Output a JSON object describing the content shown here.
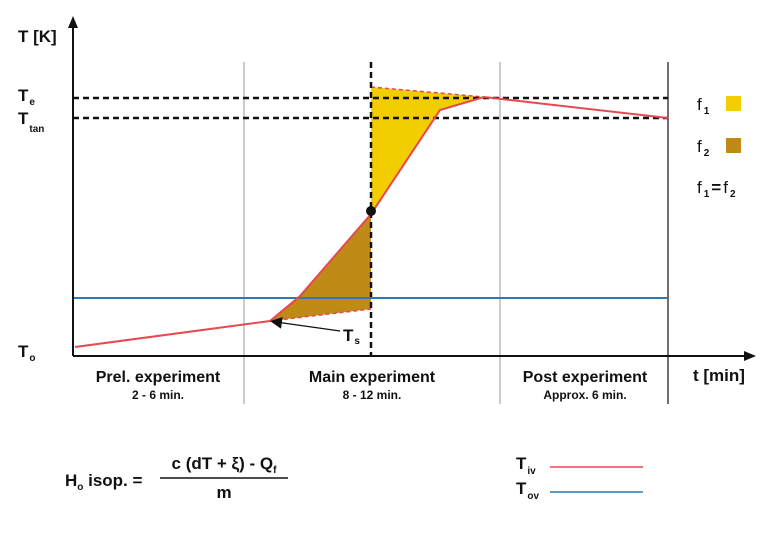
{
  "axes": {
    "y_label": "T [K]",
    "x_label": "t [min]"
  },
  "y_ticks": {
    "Te": {
      "main": "T",
      "sub": "e"
    },
    "Ttan": {
      "main": "T",
      "sub": "tan"
    },
    "To": {
      "main": "T",
      "sub": "o"
    }
  },
  "ts_label": {
    "main": "T",
    "sub": "s"
  },
  "phases": [
    {
      "name": "Prel. experiment",
      "duration": "2 - 6 min."
    },
    {
      "name": "Main experiment",
      "duration": "8 - 12 min."
    },
    {
      "name": "Post experiment",
      "duration": "Approx. 6 min."
    }
  ],
  "areas": {
    "f1": {
      "main": "f",
      "sub": "1",
      "color": "#f2cd00"
    },
    "f2": {
      "main": "f",
      "sub": "2",
      "color": "#bf8a16"
    },
    "equality": {
      "left_main": "f",
      "left_sub": "1",
      "op": "=",
      "right_main": "f",
      "right_sub": "2"
    }
  },
  "formula": {
    "lhs_main": "H",
    "lhs_sub": "o",
    "lhs_rest": " isop. =",
    "numerator": "c (dT + ξ) - Q",
    "numerator_sub": "f",
    "denominator": "m"
  },
  "lines_legend": {
    "iv": {
      "main": "T",
      "sub": "iv",
      "color": "#e8484f"
    },
    "ov": {
      "main": "T",
      "sub": "ov",
      "color": "#2f78b8"
    }
  }
}
